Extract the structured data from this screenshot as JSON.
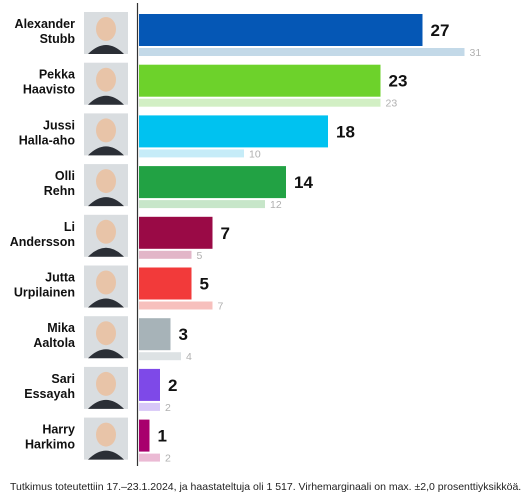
{
  "chart_data": {
    "type": "bar",
    "orientation": "horizontal",
    "categories": [
      "Alexander Stubb",
      "Pekka Haavisto",
      "Jussi Halla-aho",
      "Olli Rehn",
      "Li Andersson",
      "Jutta Urpilainen",
      "Mika Aaltola",
      "Sari Essayah",
      "Harry Harkimo"
    ],
    "category_lines": [
      [
        "Alexander",
        "Stubb"
      ],
      [
        "Pekka",
        "Haavisto"
      ],
      [
        "Jussi",
        "Halla-aho"
      ],
      [
        "Olli",
        "Rehn"
      ],
      [
        "Li",
        "Andersson"
      ],
      [
        "Jutta",
        "Urpilainen"
      ],
      [
        "Mika",
        "Aaltola"
      ],
      [
        "Sari",
        "Essayah"
      ],
      [
        "Harry",
        "Harkimo"
      ]
    ],
    "series": [
      {
        "values": [
          27,
          23,
          18,
          14,
          7,
          5,
          3,
          2,
          1
        ]
      },
      {
        "values": [
          31,
          23,
          10,
          12,
          5,
          7,
          4,
          2,
          2
        ]
      }
    ],
    "colors": [
      "#0557b5",
      "#6dd22b",
      "#00c2f0",
      "#22a244",
      "#9a0a46",
      "#f23a3a",
      "#a7b3b8",
      "#7e49e8",
      "#a8006d"
    ],
    "prev_colors": [
      "#c3d9e8",
      "#d2efc4",
      "#c6ecf8",
      "#c7e6c9",
      "#e2b6c8",
      "#f7c0bd",
      "#dde2e4",
      "#d8c8f8",
      "#ebbad4"
    ],
    "xlim": [
      0,
      31
    ],
    "grid": false,
    "legend": "none"
  },
  "footnote": "Tutkimus toteutettiin 17.–23.1.2024, ja haastateltuja oli 1 517. Virhemarginaali on max. ±2,0 prosenttiyksikköä."
}
